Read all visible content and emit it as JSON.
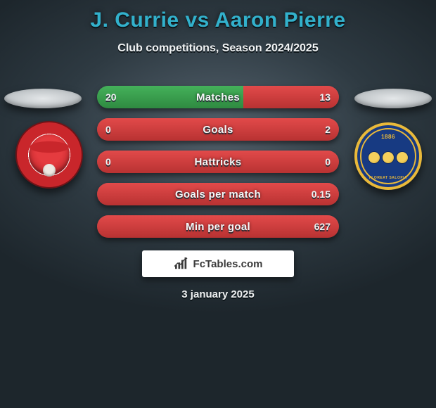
{
  "title": "J. Currie vs Aaron Pierre",
  "subtitle": "Club competitions, Season 2024/2025",
  "date_line": "3 january 2025",
  "brand_text": "FcTables.com",
  "colors": {
    "title": "#32b1cc",
    "bar_green_top": "#44b15a",
    "bar_green_bottom": "#2f8a41",
    "bar_red_top": "#e24a4a",
    "bar_red_bottom": "#b83232",
    "bg_center": "#55636e",
    "bg_edge": "#1d262c"
  },
  "left_club": {
    "name": "Leyton Orient",
    "crest_primary": "#c9262b",
    "crest_secondary": "#ffffff"
  },
  "right_club": {
    "name": "Shrewsbury Town",
    "crest_primary": "#173a82",
    "crest_secondary": "#e9b93a",
    "year": "1886",
    "motto": "FLOREAT SALOPIA"
  },
  "stats": [
    {
      "label": "Matches",
      "left_val": "20",
      "right_val": "13",
      "left_pct": 60.6,
      "right_pct": 39.4,
      "mode": "split"
    },
    {
      "label": "Goals",
      "left_val": "0",
      "right_val": "2",
      "left_pct": 0,
      "right_pct": 100,
      "mode": "split"
    },
    {
      "label": "Hattricks",
      "left_val": "0",
      "right_val": "0",
      "left_pct": 0,
      "right_pct": 0,
      "mode": "neutral"
    },
    {
      "label": "Goals per match",
      "left_val": "",
      "right_val": "0.15",
      "left_pct": 0,
      "right_pct": 100,
      "mode": "split"
    },
    {
      "label": "Min per goal",
      "left_val": "",
      "right_val": "627",
      "left_pct": 0,
      "right_pct": 100,
      "mode": "split"
    }
  ]
}
